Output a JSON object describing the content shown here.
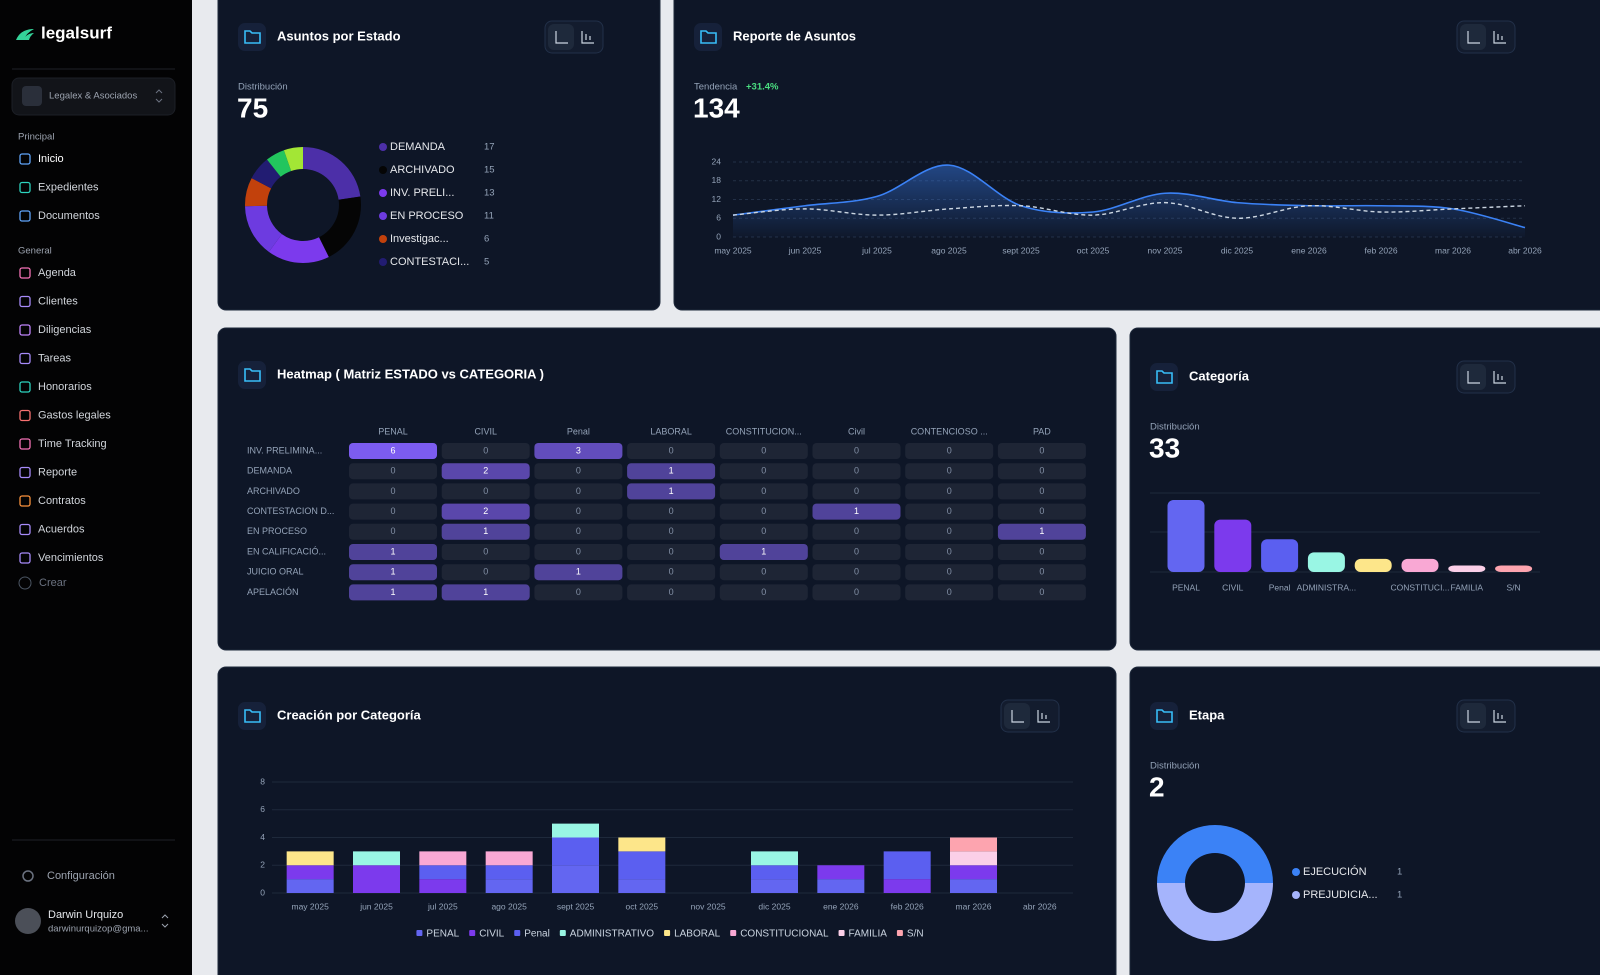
{
  "sidebar": {
    "brand": "legalsurf",
    "organization": "Legalex & Asociados",
    "sections": [
      {
        "title": "Principal",
        "items": [
          "Inicio",
          "Expedientes",
          "Documentos"
        ]
      },
      {
        "title": "General",
        "items": [
          "Agenda",
          "Clientes",
          "Diligencias",
          "Tareas",
          "Honorarios",
          "Gastos legales",
          "Time Tracking",
          "Reporte",
          "Contratos",
          "Acuerdos",
          "Vencimientos"
        ]
      }
    ],
    "create": "Crear",
    "settings": "Configuración",
    "user": {
      "name": "Darwin Urquizo",
      "email": "darwinurquizop@gma..."
    }
  },
  "chart_data": [
    {
      "type": "pie",
      "title": "Asuntos por Estado",
      "subtitle": "Distribución",
      "total": 75,
      "categories": [
        "DEMANDA",
        "ARCHIVADO",
        "INV. PRELI...",
        "EN PROCESO",
        "Investigac...",
        "CONTESTACI...",
        null,
        null
      ],
      "values": [
        17,
        15,
        13,
        11,
        6,
        5,
        4,
        4
      ],
      "colors": [
        "#4c2fa8",
        "#050505",
        "#7c3aed",
        "#6d3be0",
        "#c2410c",
        "#221c72",
        "#22c55e",
        "#a3e635"
      ]
    },
    {
      "type": "line",
      "title": "Reporte de Asuntos",
      "subtitle": "Tendencia",
      "change": "+31.4%",
      "total": 134,
      "categories": [
        "may 2025",
        "jun 2025",
        "jul 2025",
        "ago 2025",
        "sept 2025",
        "oct 2025",
        "nov 2025",
        "dic 2025",
        "ene 2026",
        "feb 2026",
        "mar 2026",
        "abr 2026"
      ],
      "series": [
        {
          "color": "#3b82f6",
          "values": [
            7,
            10,
            13,
            23,
            10,
            8,
            14,
            11,
            10,
            10,
            9,
            3
          ]
        },
        {
          "color": "#cbd5e1",
          "dashed": true,
          "values": [
            7,
            9,
            7,
            9,
            10,
            7,
            11,
            6,
            10,
            8,
            9,
            10
          ]
        }
      ],
      "ylim": [
        0,
        24
      ],
      "yticks": [
        0,
        6,
        12,
        18,
        24
      ],
      "grid": true
    },
    {
      "type": "heatmap",
      "title": "Heatmap ( Matriz ESTADO vs CATEGORIA )",
      "columns": [
        "PENAL",
        "CIVIL",
        "Penal",
        "LABORAL",
        "CONSTITUCION...",
        "Civil",
        "CONTENCIOSO ...",
        "PAD"
      ],
      "rows": [
        "INV. PRELIMINA...",
        "DEMANDA",
        "ARCHIVADO",
        "CONTESTACION D...",
        "EN PROCESO",
        "EN CALIFICACIÓ...",
        "JUICIO ORAL",
        "APELACIÓN"
      ],
      "values": [
        [
          6,
          0,
          3,
          0,
          0,
          0,
          0,
          0
        ],
        [
          0,
          2,
          0,
          1,
          0,
          0,
          0,
          0
        ],
        [
          0,
          0,
          0,
          1,
          0,
          0,
          0,
          0
        ],
        [
          0,
          2,
          0,
          0,
          0,
          1,
          0,
          0
        ],
        [
          0,
          1,
          0,
          0,
          0,
          0,
          0,
          1
        ],
        [
          1,
          0,
          0,
          0,
          1,
          0,
          0,
          0
        ],
        [
          1,
          0,
          1,
          0,
          0,
          0,
          0,
          0
        ],
        [
          1,
          1,
          0,
          0,
          0,
          0,
          0,
          0
        ]
      ],
      "color": "#7c5cf0"
    },
    {
      "type": "bar",
      "title": "Categoría",
      "subtitle": "Distribución",
      "total": 33,
      "categories": [
        "PENAL",
        "CIVIL",
        "Penal",
        "ADMINISTRA...",
        null,
        "CONSTITUCI...",
        "FAMILIA",
        "S/N"
      ],
      "values": [
        11,
        8,
        5,
        3,
        2,
        2,
        1,
        1
      ],
      "colors": [
        "#6366f1",
        "#7c3aed",
        "#5b5ff0",
        "#99f6e4",
        "#fde68a",
        "#f9a8d4",
        "#fbcfe8",
        "#fda4af"
      ]
    },
    {
      "type": "stacked_bar",
      "title": "Creación por Categoría",
      "categories": [
        "may 2025",
        "jun 2025",
        "jul 2025",
        "ago 2025",
        "sept 2025",
        "oct 2025",
        "nov 2025",
        "dic 2025",
        "ene 2026",
        "feb 2026",
        "mar 2026",
        "abr 2026"
      ],
      "series": [
        {
          "name": "PENAL",
          "color": "#6366f1",
          "values": [
            1,
            0,
            0,
            1,
            2,
            1,
            0,
            1,
            1,
            0,
            1,
            0
          ]
        },
        {
          "name": "CIVIL",
          "color": "#7c3aed",
          "values": [
            1,
            2,
            1,
            0,
            0,
            0,
            0,
            0,
            1,
            1,
            1,
            0
          ]
        },
        {
          "name": "Penal",
          "color": "#5b5ff0",
          "values": [
            0,
            0,
            1,
            1,
            2,
            2,
            0,
            1,
            0,
            2,
            0,
            0
          ]
        },
        {
          "name": "ADMINISTRATIVO",
          "color": "#99f6e4",
          "values": [
            0,
            1,
            0,
            0,
            1,
            0,
            0,
            1,
            0,
            0,
            0,
            0
          ]
        },
        {
          "name": "LABORAL",
          "color": "#fde68a",
          "values": [
            1,
            0,
            0,
            0,
            0,
            1,
            0,
            0,
            0,
            0,
            0,
            0
          ]
        },
        {
          "name": "CONSTITUCIONAL",
          "color": "#f9a8d4",
          "values": [
            0,
            0,
            1,
            1,
            0,
            0,
            0,
            0,
            0,
            0,
            0,
            0
          ]
        },
        {
          "name": "FAMILIA",
          "color": "#fbcfe8",
          "values": [
            0,
            0,
            0,
            0,
            0,
            0,
            0,
            0,
            0,
            0,
            1,
            0
          ]
        },
        {
          "name": "S/N",
          "color": "#fda4af",
          "values": [
            0,
            0,
            0,
            0,
            0,
            0,
            0,
            0,
            0,
            0,
            1,
            0
          ]
        }
      ],
      "ylim": [
        0,
        8
      ],
      "yticks": [
        0,
        2,
        4,
        6,
        8
      ],
      "grid": true,
      "legend": "bottom"
    },
    {
      "type": "pie",
      "title": "Etapa",
      "subtitle": "Distribución",
      "total": 2,
      "categories": [
        "EJECUCIÓN",
        "PREJUDICIA..."
      ],
      "values": [
        1,
        1
      ],
      "colors": [
        "#3b82f6",
        "#a5b4fc"
      ]
    }
  ]
}
